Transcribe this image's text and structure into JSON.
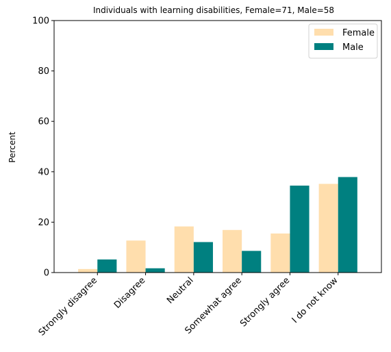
{
  "chart_data": {
    "type": "bar",
    "title": "Individuals with learning disabilities, Female=71, Male=58",
    "xlabel": "",
    "ylabel": "Percent",
    "ylim": [
      0,
      100
    ],
    "yticks": [
      0,
      20,
      40,
      60,
      80,
      100
    ],
    "categories": [
      "Strongly disagree",
      "Disagree",
      "Neutral",
      "Somewhat agree",
      "Strongly agree",
      "I do not know"
    ],
    "series": [
      {
        "name": "Female",
        "color": "#FFDEAD",
        "values": [
          1.4,
          12.7,
          18.3,
          16.9,
          15.5,
          35.2
        ]
      },
      {
        "name": "Male",
        "color": "#008080",
        "values": [
          5.2,
          1.7,
          12.1,
          8.6,
          34.5,
          37.9
        ]
      }
    ],
    "legend": "top-right",
    "grid": false
  }
}
